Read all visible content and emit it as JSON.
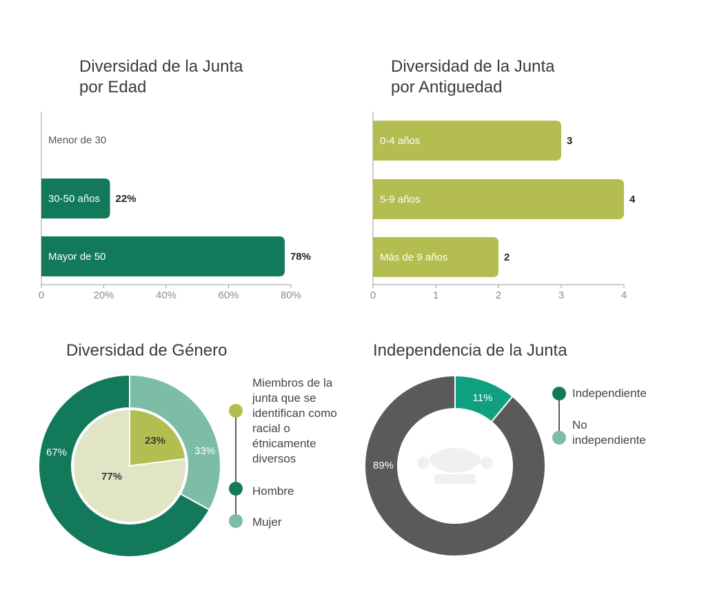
{
  "colors": {
    "dark_green": "#127A5B",
    "light_green": "#B4BE50",
    "mint": "#7DBCA5",
    "pale": "#E1E4C5",
    "teal": "#0FA07F",
    "gray": "#5A5A5A",
    "axis": "#9a9a9a",
    "text": "#3a3a3a"
  },
  "age": {
    "title_line1": "Diversidad de la Junta",
    "title_line2": "por Edad"
  },
  "tenure": {
    "title_line1": "Diversidad de la Junta",
    "title_line2": "por Antiguedad"
  },
  "gender": {
    "title": "Diversidad de Género",
    "legend": {
      "diverse_lines": [
        "Miembros de la",
        "junta que se",
        "identifican como",
        "racial o",
        "étnicamente",
        "diversos"
      ],
      "men": "Hombre",
      "women": "Mujer"
    }
  },
  "independence": {
    "title": "Independencia de la Junta",
    "legend": {
      "independent": "Independiente",
      "not_independent_lines": [
        "No",
        "independiente"
      ]
    }
  },
  "chart_data": [
    {
      "type": "bar",
      "orientation": "horizontal",
      "title": "Diversidad de la Junta por Edad",
      "categories": [
        "Menor de 30",
        "30-50 años",
        "Mayor de 50"
      ],
      "values": [
        0,
        22,
        78
      ],
      "value_labels": [
        "",
        "22%",
        "78%"
      ],
      "xlim": [
        0,
        80
      ],
      "xticks": [
        "0",
        "20%",
        "40%",
        "60%",
        "80%"
      ],
      "xtick_values": [
        0,
        20,
        40,
        60,
        80
      ],
      "color": "#127A5B",
      "grid": false
    },
    {
      "type": "bar",
      "orientation": "horizontal",
      "title": "Diversidad de la Junta por Antiguedad",
      "categories": [
        "0-4 años",
        "5-9 años",
        "Más de 9 años"
      ],
      "values": [
        3,
        4,
        2
      ],
      "value_labels": [
        "3",
        "4",
        "2"
      ],
      "xlim": [
        0,
        4
      ],
      "xticks": [
        "0",
        "1",
        "2",
        "3",
        "4"
      ],
      "xtick_values": [
        0,
        1,
        2,
        3,
        4
      ],
      "color": "#B4BE50",
      "grid": false
    },
    {
      "type": "pie",
      "title": "Diversidad de Género",
      "outer_ring": {
        "series": [
          {
            "name": "Mujer",
            "value": 33,
            "label": "33%",
            "color": "#7DBCA5"
          },
          {
            "name": "Hombre",
            "value": 67,
            "label": "67%",
            "color": "#127A5B"
          }
        ]
      },
      "inner_pie": {
        "series": [
          {
            "name": "Miembros de la junta que se identifican como racial o étnicamente diversos",
            "value": 23,
            "label": "23%",
            "color": "#B4BE50"
          },
          {
            "name": "",
            "value": 77,
            "label": "77%",
            "color": "#E1E4C5"
          }
        ]
      }
    },
    {
      "type": "pie",
      "title": "Independencia de la Junta",
      "donut": true,
      "series": [
        {
          "name": "Independiente",
          "value": 11,
          "label": "11%",
          "color": "#0FA07F"
        },
        {
          "name": "No independiente",
          "value": 89,
          "label": "89%",
          "color": "#5A5A5A"
        }
      ]
    }
  ]
}
